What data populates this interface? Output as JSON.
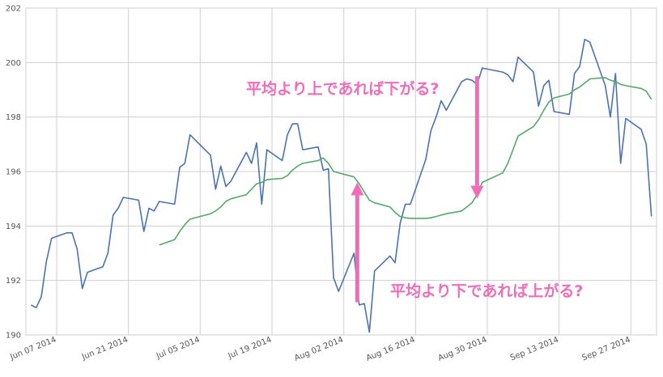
{
  "chart_data": {
    "type": "line",
    "title": "",
    "xlabel": "",
    "ylabel": "",
    "ylim": [
      190,
      202
    ],
    "xlim": [
      "2014-06-01",
      "2014-10-02"
    ],
    "grid": true,
    "y_ticks": [
      "190",
      "192",
      "194",
      "196",
      "198",
      "200",
      "202"
    ],
    "x_ticks": [
      {
        "date": "2014-06-07",
        "label": "Jun 07 2014"
      },
      {
        "date": "2014-06-21",
        "label": "Jun 21 2014"
      },
      {
        "date": "2014-07-05",
        "label": "Jul 05 2014"
      },
      {
        "date": "2014-07-19",
        "label": "Jul 19 2014"
      },
      {
        "date": "2014-08-02",
        "label": "Aug 02 2014"
      },
      {
        "date": "2014-08-16",
        "label": "Aug 16 2014"
      },
      {
        "date": "2014-08-30",
        "label": "Aug 30 2014"
      },
      {
        "date": "2014-09-13",
        "label": "Sep 13 2014"
      },
      {
        "date": "2014-09-27",
        "label": "Sep 27 2014"
      }
    ],
    "series": [
      {
        "color": "#4c72b0",
        "points": [
          [
            "2014-06-02",
            191.1
          ],
          [
            "2014-06-03",
            191.0
          ],
          [
            "2014-06-04",
            191.4
          ],
          [
            "2014-06-05",
            192.7
          ],
          [
            "2014-06-06",
            193.55
          ],
          [
            "2014-06-09",
            193.75
          ],
          [
            "2014-06-10",
            193.75
          ],
          [
            "2014-06-11",
            193.15
          ],
          [
            "2014-06-12",
            191.7
          ],
          [
            "2014-06-13",
            192.3
          ],
          [
            "2014-06-16",
            192.5
          ],
          [
            "2014-06-17",
            193.0
          ],
          [
            "2014-06-18",
            194.4
          ],
          [
            "2014-06-19",
            194.65
          ],
          [
            "2014-06-20",
            195.05
          ],
          [
            "2014-06-23",
            194.95
          ],
          [
            "2014-06-24",
            193.8
          ],
          [
            "2014-06-25",
            194.65
          ],
          [
            "2014-06-26",
            194.55
          ],
          [
            "2014-06-27",
            194.9
          ],
          [
            "2014-06-30",
            194.8
          ],
          [
            "2014-07-01",
            196.15
          ],
          [
            "2014-07-02",
            196.3
          ],
          [
            "2014-07-03",
            197.35
          ],
          [
            "2014-07-07",
            196.6
          ],
          [
            "2014-07-08",
            195.35
          ],
          [
            "2014-07-09",
            196.2
          ],
          [
            "2014-07-10",
            195.45
          ],
          [
            "2014-07-11",
            195.65
          ],
          [
            "2014-07-14",
            196.7
          ],
          [
            "2014-07-15",
            196.3
          ],
          [
            "2014-07-16",
            197.05
          ],
          [
            "2014-07-17",
            194.8
          ],
          [
            "2014-07-18",
            196.8
          ],
          [
            "2014-07-21",
            196.4
          ],
          [
            "2014-07-22",
            197.35
          ],
          [
            "2014-07-23",
            197.75
          ],
          [
            "2014-07-24",
            197.75
          ],
          [
            "2014-07-25",
            196.8
          ],
          [
            "2014-07-28",
            196.9
          ],
          [
            "2014-07-29",
            196.05
          ],
          [
            "2014-07-30",
            196.1
          ],
          [
            "2014-07-31",
            192.1
          ],
          [
            "2014-08-01",
            191.6
          ],
          [
            "2014-08-04",
            193.0
          ],
          [
            "2014-08-05",
            191.1
          ],
          [
            "2014-08-06",
            191.15
          ],
          [
            "2014-08-07",
            190.1
          ],
          [
            "2014-08-08",
            192.35
          ],
          [
            "2014-08-11",
            192.9
          ],
          [
            "2014-08-12",
            192.65
          ],
          [
            "2014-08-13",
            194.1
          ],
          [
            "2014-08-14",
            194.8
          ],
          [
            "2014-08-15",
            194.8
          ],
          [
            "2014-08-18",
            196.45
          ],
          [
            "2014-08-19",
            197.5
          ],
          [
            "2014-08-20",
            198.0
          ],
          [
            "2014-08-21",
            198.6
          ],
          [
            "2014-08-22",
            198.25
          ],
          [
            "2014-08-25",
            199.3
          ],
          [
            "2014-08-26",
            199.4
          ],
          [
            "2014-08-27",
            199.35
          ],
          [
            "2014-08-28",
            199.2
          ],
          [
            "2014-08-29",
            199.8
          ],
          [
            "2014-09-02",
            199.65
          ],
          [
            "2014-09-03",
            199.55
          ],
          [
            "2014-09-04",
            199.3
          ],
          [
            "2014-09-05",
            200.2
          ],
          [
            "2014-09-08",
            199.65
          ],
          [
            "2014-09-09",
            198.4
          ],
          [
            "2014-09-10",
            199.15
          ],
          [
            "2014-09-11",
            199.35
          ],
          [
            "2014-09-12",
            198.2
          ],
          [
            "2014-09-15",
            198.1
          ],
          [
            "2014-09-16",
            199.6
          ],
          [
            "2014-09-17",
            199.85
          ],
          [
            "2014-09-18",
            200.85
          ],
          [
            "2014-09-19",
            200.75
          ],
          [
            "2014-09-22",
            199.15
          ],
          [
            "2014-09-23",
            198.0
          ],
          [
            "2014-09-24",
            199.6
          ],
          [
            "2014-09-25",
            196.3
          ],
          [
            "2014-09-26",
            197.95
          ],
          [
            "2014-09-29",
            197.55
          ],
          [
            "2014-09-30",
            197.0
          ],
          [
            "2014-10-01",
            194.35
          ]
        ]
      },
      {
        "color": "#55a868",
        "points": [
          [
            "2014-06-27",
            193.3
          ],
          [
            "2014-06-30",
            193.5
          ],
          [
            "2014-07-01",
            193.8
          ],
          [
            "2014-07-02",
            194.05
          ],
          [
            "2014-07-03",
            194.25
          ],
          [
            "2014-07-07",
            194.45
          ],
          [
            "2014-07-08",
            194.55
          ],
          [
            "2014-07-09",
            194.7
          ],
          [
            "2014-07-10",
            194.9
          ],
          [
            "2014-07-11",
            195.0
          ],
          [
            "2014-07-14",
            195.15
          ],
          [
            "2014-07-15",
            195.35
          ],
          [
            "2014-07-16",
            195.55
          ],
          [
            "2014-07-17",
            195.6
          ],
          [
            "2014-07-18",
            195.7
          ],
          [
            "2014-07-21",
            195.75
          ],
          [
            "2014-07-22",
            195.85
          ],
          [
            "2014-07-23",
            196.05
          ],
          [
            "2014-07-24",
            196.2
          ],
          [
            "2014-07-25",
            196.3
          ],
          [
            "2014-07-28",
            196.4
          ],
          [
            "2014-07-29",
            196.5
          ],
          [
            "2014-07-30",
            196.3
          ],
          [
            "2014-07-31",
            196.0
          ],
          [
            "2014-08-04",
            195.8
          ],
          [
            "2014-08-05",
            195.55
          ],
          [
            "2014-08-06",
            195.25
          ],
          [
            "2014-08-07",
            194.95
          ],
          [
            "2014-08-08",
            194.85
          ],
          [
            "2014-08-11",
            194.7
          ],
          [
            "2014-08-12",
            194.5
          ],
          [
            "2014-08-13",
            194.35
          ],
          [
            "2014-08-14",
            194.3
          ],
          [
            "2014-08-15",
            194.28
          ],
          [
            "2014-08-18",
            194.28
          ],
          [
            "2014-08-19",
            194.3
          ],
          [
            "2014-08-20",
            194.35
          ],
          [
            "2014-08-21",
            194.4
          ],
          [
            "2014-08-22",
            194.45
          ],
          [
            "2014-08-25",
            194.55
          ],
          [
            "2014-08-26",
            194.7
          ],
          [
            "2014-08-27",
            194.85
          ],
          [
            "2014-08-28",
            195.15
          ],
          [
            "2014-08-29",
            195.6
          ],
          [
            "2014-09-02",
            195.95
          ],
          [
            "2014-09-03",
            196.3
          ],
          [
            "2014-09-04",
            196.8
          ],
          [
            "2014-09-05",
            197.3
          ],
          [
            "2014-09-08",
            197.65
          ],
          [
            "2014-09-09",
            197.9
          ],
          [
            "2014-09-10",
            198.25
          ],
          [
            "2014-09-11",
            198.55
          ],
          [
            "2014-09-12",
            198.7
          ],
          [
            "2014-09-15",
            198.85
          ],
          [
            "2014-09-16",
            199.0
          ],
          [
            "2014-09-17",
            199.1
          ],
          [
            "2014-09-18",
            199.25
          ],
          [
            "2014-09-19",
            199.4
          ],
          [
            "2014-09-22",
            199.45
          ],
          [
            "2014-09-23",
            199.35
          ],
          [
            "2014-09-24",
            199.3
          ],
          [
            "2014-09-25",
            199.2
          ],
          [
            "2014-09-26",
            199.15
          ],
          [
            "2014-09-29",
            199.05
          ],
          [
            "2014-09-30",
            198.95
          ],
          [
            "2014-10-01",
            198.65
          ]
        ]
      }
    ],
    "annotations": [
      {
        "text": "平均より上であれば下がる?",
        "color": "#f06cb8",
        "arrow_from": [
          "2014-08-28",
          199.5
        ],
        "arrow_to": [
          "2014-08-28",
          195.0
        ]
      },
      {
        "text": "平均より下であれば上がる?",
        "color": "#f06cb8",
        "arrow_from": [
          "2014-08-04",
          191.2
        ],
        "arrow_to": [
          "2014-08-04",
          195.6
        ]
      }
    ]
  }
}
